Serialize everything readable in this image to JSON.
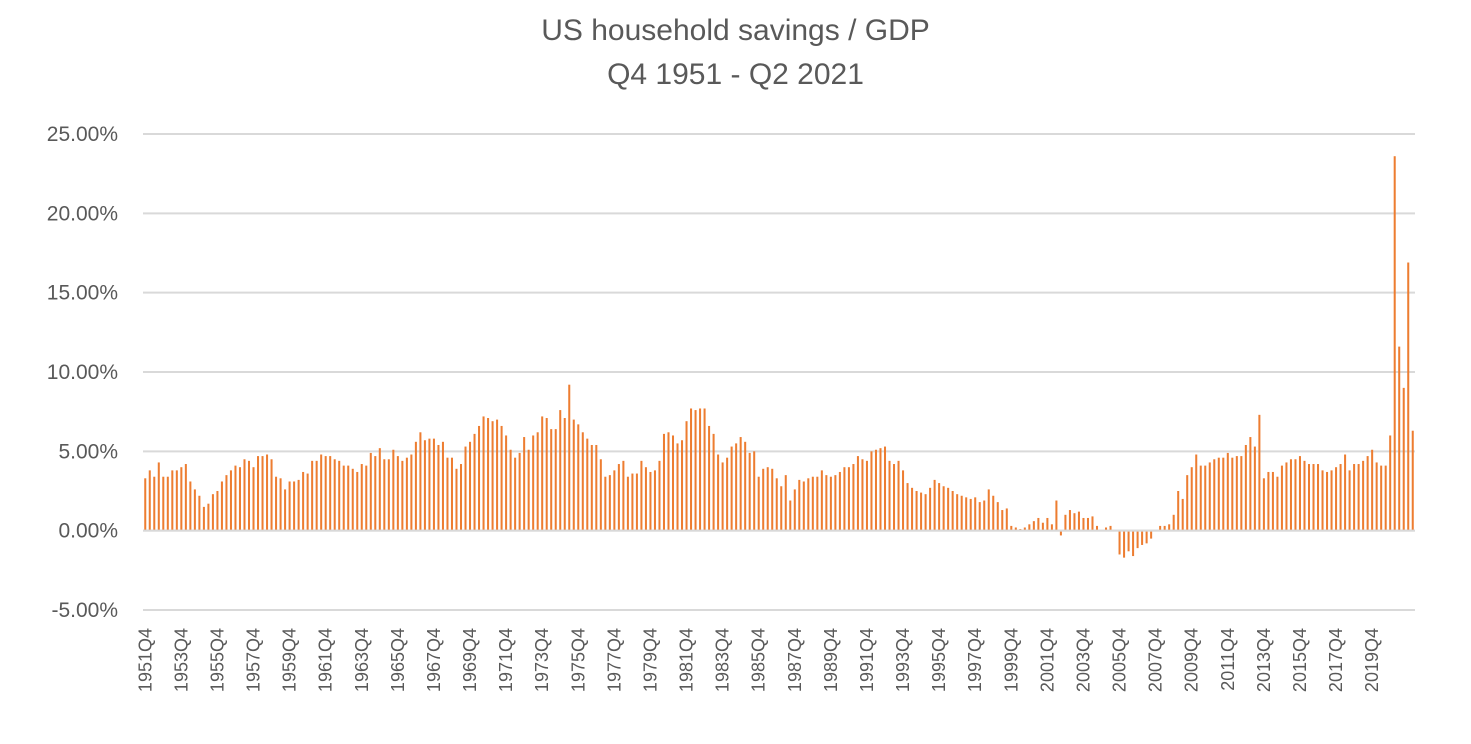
{
  "chart_data": {
    "type": "bar",
    "title": "US household savings / GDP",
    "subtitle": "Q4 1951 - Q2 2021",
    "xlabel": "",
    "ylabel": "",
    "ylim": [
      -0.05,
      0.25
    ],
    "y_ticks": [
      "25.00%",
      "20.00%",
      "15.00%",
      "10.00%",
      "5.00%",
      "0.00%",
      "-5.00%"
    ],
    "y_tick_values": [
      0.25,
      0.2,
      0.15,
      0.1,
      0.05,
      0.0,
      -0.05
    ],
    "x_tick_labels": [
      "1951Q4",
      "1953Q4",
      "1955Q4",
      "1957Q4",
      "1959Q4",
      "1961Q4",
      "1963Q4",
      "1965Q4",
      "1967Q4",
      "1969Q4",
      "1971Q4",
      "1973Q4",
      "1975Q4",
      "1977Q4",
      "1979Q4",
      "1981Q4",
      "1983Q4",
      "1985Q4",
      "1987Q4",
      "1989Q4",
      "1991Q4",
      "1993Q4",
      "1995Q4",
      "1997Q4",
      "1999Q4",
      "2001Q4",
      "2003Q4",
      "2005Q4",
      "2007Q4",
      "2009Q4",
      "2011Q4",
      "2013Q4",
      "2015Q4",
      "2017Q4",
      "2019Q4"
    ],
    "start_quarter": "1951Q4",
    "end_quarter": "2021Q2",
    "bar_color": "#ED7D31",
    "grid": true,
    "legend": "none",
    "anchors": [
      [
        "1951Q4",
        0.033
      ],
      [
        "1952Q1",
        0.038
      ],
      [
        "1952Q2",
        0.034
      ],
      [
        "1952Q3",
        0.043
      ],
      [
        "1952Q4",
        0.034
      ],
      [
        "1953Q1",
        0.034
      ],
      [
        "1953Q2",
        0.038
      ],
      [
        "1953Q3",
        0.038
      ],
      [
        "1953Q4",
        0.04
      ],
      [
        "1954Q1",
        0.042
      ],
      [
        "1954Q2",
        0.031
      ],
      [
        "1954Q3",
        0.026
      ],
      [
        "1954Q4",
        0.022
      ],
      [
        "1955Q1",
        0.015
      ],
      [
        "1955Q2",
        0.017
      ],
      [
        "1955Q3",
        0.023
      ],
      [
        "1955Q4",
        0.025
      ],
      [
        "1956Q1",
        0.031
      ],
      [
        "1956Q2",
        0.035
      ],
      [
        "1956Q3",
        0.038
      ],
      [
        "1956Q4",
        0.041
      ],
      [
        "1957Q1",
        0.04
      ],
      [
        "1957Q2",
        0.045
      ],
      [
        "1957Q3",
        0.044
      ],
      [
        "1957Q4",
        0.04
      ],
      [
        "1958Q1",
        0.047
      ],
      [
        "1958Q2",
        0.047
      ],
      [
        "1958Q3",
        0.048
      ],
      [
        "1958Q4",
        0.045
      ],
      [
        "1959Q1",
        0.034
      ],
      [
        "1959Q2",
        0.033
      ],
      [
        "1959Q3",
        0.026
      ],
      [
        "1959Q4",
        0.031
      ],
      [
        "1960Q1",
        0.031
      ],
      [
        "1960Q2",
        0.032
      ],
      [
        "1960Q3",
        0.037
      ],
      [
        "1960Q4",
        0.036
      ],
      [
        "1961Q1",
        0.044
      ],
      [
        "1961Q2",
        0.044
      ],
      [
        "1961Q3",
        0.048
      ],
      [
        "1961Q4",
        0.047
      ],
      [
        "1962Q1",
        0.047
      ],
      [
        "1962Q2",
        0.045
      ],
      [
        "1962Q3",
        0.044
      ],
      [
        "1962Q4",
        0.041
      ],
      [
        "1963Q1",
        0.041
      ],
      [
        "1963Q2",
        0.039
      ],
      [
        "1963Q3",
        0.037
      ],
      [
        "1963Q4",
        0.042
      ],
      [
        "1964Q1",
        0.041
      ],
      [
        "1964Q2",
        0.049
      ],
      [
        "1964Q3",
        0.047
      ],
      [
        "1964Q4",
        0.052
      ],
      [
        "1965Q1",
        0.045
      ],
      [
        "1965Q2",
        0.045
      ],
      [
        "1965Q3",
        0.051
      ],
      [
        "1965Q4",
        0.047
      ],
      [
        "1966Q1",
        0.044
      ],
      [
        "1966Q2",
        0.046
      ],
      [
        "1966Q3",
        0.048
      ],
      [
        "1966Q4",
        0.056
      ],
      [
        "1967Q1",
        0.062
      ],
      [
        "1967Q2",
        0.057
      ],
      [
        "1967Q3",
        0.058
      ],
      [
        "1967Q4",
        0.058
      ],
      [
        "1968Q1",
        0.054
      ],
      [
        "1968Q2",
        0.056
      ],
      [
        "1968Q3",
        0.046
      ],
      [
        "1968Q4",
        0.046
      ],
      [
        "1969Q1",
        0.039
      ],
      [
        "1969Q2",
        0.042
      ],
      [
        "1969Q3",
        0.053
      ],
      [
        "1969Q4",
        0.056
      ],
      [
        "1970Q1",
        0.061
      ],
      [
        "1970Q2",
        0.066
      ],
      [
        "1970Q3",
        0.072
      ],
      [
        "1970Q4",
        0.071
      ],
      [
        "1971Q1",
        0.069
      ],
      [
        "1971Q2",
        0.07
      ],
      [
        "1971Q3",
        0.066
      ],
      [
        "1971Q4",
        0.06
      ],
      [
        "1972Q1",
        0.051
      ],
      [
        "1972Q2",
        0.046
      ],
      [
        "1972Q3",
        0.049
      ],
      [
        "1972Q4",
        0.059
      ],
      [
        "1973Q1",
        0.051
      ],
      [
        "1973Q2",
        0.06
      ],
      [
        "1973Q3",
        0.062
      ],
      [
        "1973Q4",
        0.072
      ],
      [
        "1974Q1",
        0.071
      ],
      [
        "1974Q2",
        0.064
      ],
      [
        "1974Q3",
        0.064
      ],
      [
        "1974Q4",
        0.076
      ],
      [
        "1975Q1",
        0.071
      ],
      [
        "1975Q2",
        0.092
      ],
      [
        "1975Q3",
        0.07
      ],
      [
        "1975Q4",
        0.067
      ],
      [
        "1976Q1",
        0.062
      ],
      [
        "1976Q2",
        0.058
      ],
      [
        "1976Q3",
        0.054
      ],
      [
        "1976Q4",
        0.054
      ],
      [
        "1977Q1",
        0.045
      ],
      [
        "1977Q2",
        0.034
      ],
      [
        "1977Q3",
        0.035
      ],
      [
        "1977Q4",
        0.038
      ],
      [
        "1978Q1",
        0.042
      ],
      [
        "1978Q2",
        0.044
      ],
      [
        "1978Q3",
        0.034
      ],
      [
        "1978Q4",
        0.036
      ],
      [
        "1979Q1",
        0.036
      ],
      [
        "1979Q2",
        0.044
      ],
      [
        "1979Q3",
        0.04
      ],
      [
        "1979Q4",
        0.037
      ],
      [
        "1980Q1",
        0.038
      ],
      [
        "1980Q2",
        0.044
      ],
      [
        "1980Q3",
        0.061
      ],
      [
        "1980Q4",
        0.062
      ],
      [
        "1981Q1",
        0.06
      ],
      [
        "1981Q2",
        0.055
      ],
      [
        "1981Q3",
        0.057
      ],
      [
        "1981Q4",
        0.069
      ],
      [
        "1982Q1",
        0.077
      ],
      [
        "1982Q2",
        0.076
      ],
      [
        "1982Q3",
        0.077
      ],
      [
        "1982Q4",
        0.077
      ],
      [
        "1983Q1",
        0.066
      ],
      [
        "1983Q2",
        0.061
      ],
      [
        "1983Q3",
        0.048
      ],
      [
        "1983Q4",
        0.043
      ],
      [
        "1984Q1",
        0.046
      ],
      [
        "1984Q2",
        0.053
      ],
      [
        "1984Q3",
        0.055
      ],
      [
        "1984Q4",
        0.059
      ],
      [
        "1985Q1",
        0.056
      ],
      [
        "1985Q2",
        0.049
      ],
      [
        "1985Q3",
        0.05
      ],
      [
        "1985Q4",
        0.034
      ],
      [
        "1986Q1",
        0.039
      ],
      [
        "1986Q2",
        0.04
      ],
      [
        "1986Q3",
        0.039
      ],
      [
        "1986Q4",
        0.033
      ],
      [
        "1987Q1",
        0.028
      ],
      [
        "1987Q2",
        0.035
      ],
      [
        "1987Q3",
        0.019
      ],
      [
        "1987Q4",
        0.026
      ],
      [
        "1988Q1",
        0.032
      ],
      [
        "1988Q2",
        0.031
      ],
      [
        "1988Q3",
        0.033
      ],
      [
        "1988Q4",
        0.034
      ],
      [
        "1989Q1",
        0.034
      ],
      [
        "1989Q2",
        0.038
      ],
      [
        "1989Q3",
        0.035
      ],
      [
        "1989Q4",
        0.034
      ],
      [
        "1990Q1",
        0.035
      ],
      [
        "1990Q2",
        0.037
      ],
      [
        "1990Q3",
        0.04
      ],
      [
        "1990Q4",
        0.04
      ],
      [
        "1991Q1",
        0.042
      ],
      [
        "1991Q2",
        0.047
      ],
      [
        "1991Q3",
        0.045
      ],
      [
        "1991Q4",
        0.044
      ],
      [
        "1992Q1",
        0.05
      ],
      [
        "1992Q2",
        0.051
      ],
      [
        "1992Q3",
        0.052
      ],
      [
        "1992Q4",
        0.053
      ],
      [
        "1993Q1",
        0.044
      ],
      [
        "1993Q2",
        0.042
      ],
      [
        "1993Q3",
        0.044
      ],
      [
        "1993Q4",
        0.038
      ],
      [
        "1994Q1",
        0.03
      ],
      [
        "1994Q2",
        0.027
      ],
      [
        "1994Q3",
        0.025
      ],
      [
        "1994Q4",
        0.024
      ],
      [
        "1995Q1",
        0.023
      ],
      [
        "1995Q2",
        0.027
      ],
      [
        "1995Q3",
        0.032
      ],
      [
        "1995Q4",
        0.03
      ],
      [
        "1996Q1",
        0.028
      ],
      [
        "1996Q2",
        0.027
      ],
      [
        "1996Q3",
        0.025
      ],
      [
        "1996Q4",
        0.023
      ],
      [
        "1997Q1",
        0.022
      ],
      [
        "1997Q2",
        0.021
      ],
      [
        "1997Q3",
        0.02
      ],
      [
        "1997Q4",
        0.021
      ],
      [
        "1998Q1",
        0.018
      ],
      [
        "1998Q2",
        0.019
      ],
      [
        "1998Q3",
        0.026
      ],
      [
        "1998Q4",
        0.022
      ],
      [
        "1999Q1",
        0.018
      ],
      [
        "1999Q2",
        0.013
      ],
      [
        "1999Q3",
        0.014
      ],
      [
        "1999Q4",
        0.003
      ],
      [
        "2000Q1",
        0.002
      ],
      [
        "2000Q2",
        0.001
      ],
      [
        "2000Q3",
        0.002
      ],
      [
        "2000Q4",
        0.004
      ],
      [
        "2001Q1",
        0.006
      ],
      [
        "2001Q2",
        0.008
      ],
      [
        "2001Q3",
        0.005
      ],
      [
        "2001Q4",
        0.008
      ],
      [
        "2002Q1",
        0.004
      ],
      [
        "2002Q2",
        0.019
      ],
      [
        "2002Q3",
        -0.003
      ],
      [
        "2002Q4",
        0.01
      ],
      [
        "2003Q1",
        0.013
      ],
      [
        "2003Q2",
        0.011
      ],
      [
        "2003Q3",
        0.012
      ],
      [
        "2003Q4",
        0.008
      ],
      [
        "2004Q1",
        0.008
      ],
      [
        "2004Q2",
        0.009
      ],
      [
        "2004Q3",
        0.003
      ],
      [
        "2004Q4",
        0.0
      ],
      [
        "2005Q1",
        0.002
      ],
      [
        "2005Q2",
        0.003
      ],
      [
        "2005Q3",
        0.0
      ],
      [
        "2005Q4",
        -0.015
      ],
      [
        "2006Q1",
        -0.017
      ],
      [
        "2006Q2",
        -0.013
      ],
      [
        "2006Q3",
        -0.016
      ],
      [
        "2006Q4",
        -0.011
      ],
      [
        "2007Q1",
        -0.009
      ],
      [
        "2007Q2",
        -0.008
      ],
      [
        "2007Q3",
        -0.005
      ],
      [
        "2007Q4",
        0.0
      ],
      [
        "2008Q1",
        0.003
      ],
      [
        "2008Q2",
        0.003
      ],
      [
        "2008Q3",
        0.004
      ],
      [
        "2008Q4",
        0.01
      ],
      [
        "2009Q1",
        0.025
      ],
      [
        "2009Q2",
        0.02
      ],
      [
        "2009Q3",
        0.035
      ],
      [
        "2009Q4",
        0.04
      ],
      [
        "2010Q1",
        0.048
      ],
      [
        "2010Q2",
        0.041
      ],
      [
        "2010Q3",
        0.041
      ],
      [
        "2010Q4",
        0.043
      ],
      [
        "2011Q1",
        0.045
      ],
      [
        "2011Q2",
        0.046
      ],
      [
        "2011Q3",
        0.046
      ],
      [
        "2011Q4",
        0.049
      ],
      [
        "2012Q1",
        0.046
      ],
      [
        "2012Q2",
        0.047
      ],
      [
        "2012Q3",
        0.047
      ],
      [
        "2012Q4",
        0.054
      ],
      [
        "2013Q1",
        0.059
      ],
      [
        "2013Q2",
        0.053
      ],
      [
        "2013Q3",
        0.073
      ],
      [
        "2013Q4",
        0.033
      ],
      [
        "2014Q1",
        0.037
      ],
      [
        "2014Q2",
        0.037
      ],
      [
        "2014Q3",
        0.034
      ],
      [
        "2014Q4",
        0.041
      ],
      [
        "2015Q1",
        0.043
      ],
      [
        "2015Q2",
        0.045
      ],
      [
        "2015Q3",
        0.045
      ],
      [
        "2015Q4",
        0.047
      ],
      [
        "2016Q1",
        0.044
      ],
      [
        "2016Q2",
        0.042
      ],
      [
        "2016Q3",
        0.042
      ],
      [
        "2016Q4",
        0.042
      ],
      [
        "2017Q1",
        0.038
      ],
      [
        "2017Q2",
        0.037
      ],
      [
        "2017Q3",
        0.038
      ],
      [
        "2017Q4",
        0.04
      ],
      [
        "2018Q1",
        0.042
      ],
      [
        "2018Q2",
        0.048
      ],
      [
        "2018Q3",
        0.038
      ],
      [
        "2018Q4",
        0.042
      ],
      [
        "2019Q1",
        0.042
      ],
      [
        "2019Q2",
        0.044
      ],
      [
        "2019Q3",
        0.047
      ],
      [
        "2019Q4",
        0.051
      ],
      [
        "2020Q1",
        0.043
      ],
      [
        "2020Q2",
        0.041
      ],
      [
        "2020Q3",
        0.041
      ],
      [
        "2020Q4",
        0.06
      ],
      [
        "2021Q1",
        0.236
      ],
      [
        "2021Q2",
        0.116
      ]
    ],
    "tail_values": [
      0.09,
      0.169,
      0.063
    ]
  }
}
